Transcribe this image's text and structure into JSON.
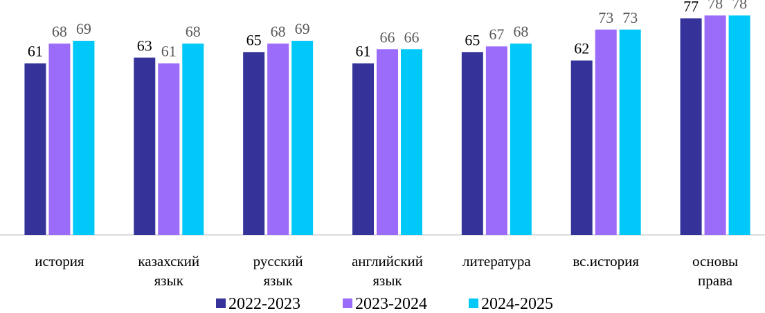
{
  "chart_data": {
    "type": "bar",
    "categories": [
      "история",
      "казахский\nязык",
      "русский\nязык",
      "английский\nязык",
      "литература",
      "вс.история",
      "основы\nправа"
    ],
    "series": [
      {
        "name": "2022-2023",
        "color": "#35339a",
        "values": [
          61,
          63,
          65,
          61,
          65,
          62,
          77
        ]
      },
      {
        "name": "2023-2024",
        "color": "#9b6bfa",
        "values": [
          68,
          61,
          68,
          66,
          67,
          73,
          78
        ]
      },
      {
        "name": "2024-2025",
        "color": "#00c8f8",
        "values": [
          69,
          68,
          69,
          66,
          68,
          73,
          78
        ]
      }
    ],
    "ylim": [
      0,
      83.5
    ],
    "legend": "bottom"
  }
}
